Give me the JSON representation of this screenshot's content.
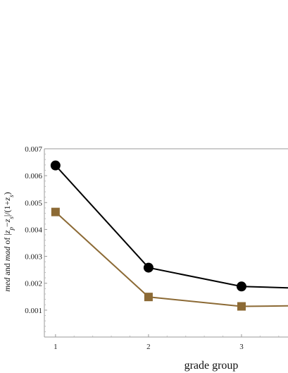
{
  "chart_data": {
    "type": "line",
    "xlabel": "grade group",
    "ylabel": {
      "med": "med",
      "and": " and ",
      "mad": "mad",
      "of": " of |",
      "zp": "z",
      "p": "p",
      "minus": "−",
      "zs": "z",
      "s": "s",
      "mid": "|/(1+",
      "zs2": "z",
      "s2": "s",
      "close": ")"
    },
    "x": [
      1,
      2,
      3,
      3.5
    ],
    "xlim": [
      0.88,
      3.5
    ],
    "ylim": [
      0,
      0.007
    ],
    "x_ticks": [
      1,
      2,
      3
    ],
    "x_tick_labels": [
      "1",
      "2",
      "3"
    ],
    "y_ticks": [
      0.001,
      0.002,
      0.003,
      0.004,
      0.005,
      0.006,
      0.007
    ],
    "y_tick_labels": [
      "0.001",
      "0.002",
      "0.003",
      "0.004",
      "0.005",
      "0.006",
      "0.007"
    ],
    "grid": false,
    "series": [
      {
        "marker": "circle",
        "color": "#000000",
        "values": [
          0.00638,
          0.00258,
          0.00188,
          0.00183
        ]
      },
      {
        "marker": "square",
        "color": "#8c6a35",
        "values": [
          0.00465,
          0.00149,
          0.00114,
          0.00116
        ]
      }
    ]
  }
}
